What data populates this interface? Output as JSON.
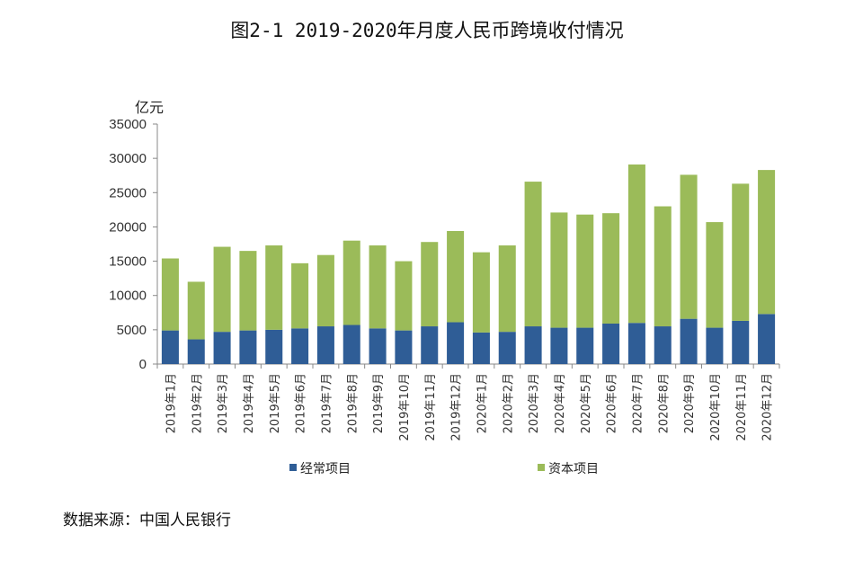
{
  "title": "图2-1 2019-2020年月度人民币跨境收付情况",
  "source": "数据来源：中国人民银行",
  "chart_data": {
    "type": "bar",
    "stacked": true,
    "title": "图2-1 2019-2020年月度人民币跨境收付情况",
    "ylabel": "亿元",
    "ylim": [
      0,
      35000
    ],
    "yticks": [
      0,
      5000,
      10000,
      15000,
      20000,
      25000,
      30000,
      35000
    ],
    "grid": false,
    "legend_position": "bottom",
    "categories": [
      "2019年1月",
      "2019年2月",
      "2019年3月",
      "2019年4月",
      "2019年5月",
      "2019年6月",
      "2019年7月",
      "2019年8月",
      "2019年9月",
      "2019年10月",
      "2019年11月",
      "2019年12月",
      "2020年1月",
      "2020年2月",
      "2020年3月",
      "2020年4月",
      "2020年5月",
      "2020年6月",
      "2020年7月",
      "2020年8月",
      "2020年9月",
      "2020年10月",
      "2020年11月",
      "2020年12月"
    ],
    "series": [
      {
        "name": "经常项目",
        "color": "#2f5d96",
        "values": [
          4900,
          3600,
          4700,
          4900,
          5000,
          5200,
          5500,
          5700,
          5200,
          4900,
          5500,
          6100,
          4600,
          4700,
          5500,
          5300,
          5300,
          5900,
          6000,
          5500,
          6600,
          5300,
          6300,
          7300
        ]
      },
      {
        "name": "资本项目",
        "color": "#9bbb59",
        "values": [
          10500,
          8400,
          12400,
          11600,
          12300,
          9500,
          10400,
          12300,
          12100,
          10100,
          12300,
          13300,
          11700,
          12600,
          21100,
          16800,
          16500,
          16100,
          23100,
          17500,
          21000,
          15400,
          20000,
          21000
        ]
      }
    ]
  }
}
